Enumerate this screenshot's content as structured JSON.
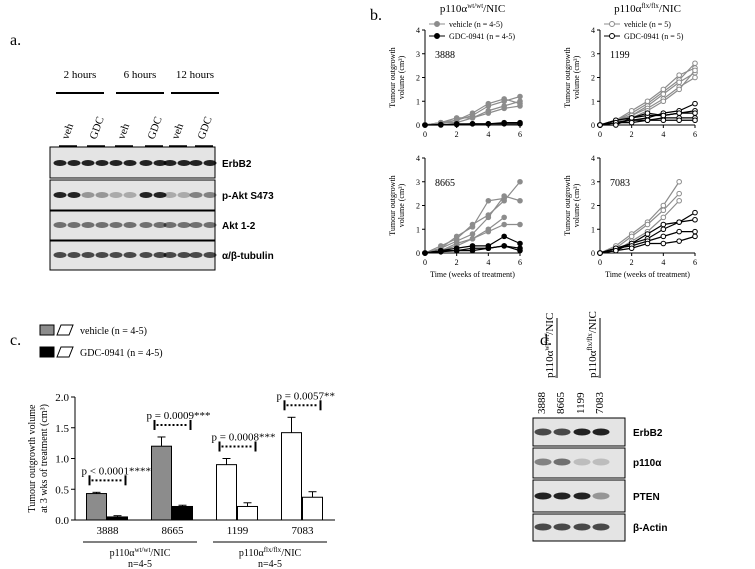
{
  "panels": {
    "a": "a.",
    "b": "b.",
    "c": "c.",
    "d": "d."
  },
  "blot_a": {
    "times": [
      "2 hours",
      "6 hours",
      "12 hours"
    ],
    "lanes": [
      "veh",
      "GDC",
      "veh",
      "GDC",
      "veh",
      "GDC"
    ],
    "rows": [
      "ErbB2",
      "p-Akt S473",
      "Akt 1-2",
      "α/β-tubulin"
    ]
  },
  "blot_d": {
    "groups": [
      {
        "name": "p110α",
        "sup": "wt/wt",
        "suffix": "/NIC"
      },
      {
        "name": "p110α",
        "sup": "flx/flx",
        "suffix": "/NIC"
      }
    ],
    "samples": [
      "3888",
      "8665",
      "1199",
      "7083"
    ],
    "rows": [
      "ErbB2",
      "p110α",
      "PTEN",
      "β-Actin"
    ]
  },
  "chart_data": [
    {
      "type": "line",
      "title": "p110α",
      "title_sup": "wt/wt",
      "title_suffix": "/NIC",
      "annotation": "3888",
      "ylabel": [
        "Tumour outgrowth",
        "volume (cm³)"
      ],
      "x": [
        0,
        1,
        2,
        3,
        4,
        5,
        6
      ],
      "xlim": [
        0,
        6
      ],
      "xticks": [
        0,
        2,
        4,
        6
      ],
      "ylim": [
        0,
        4
      ],
      "yticks": [
        0,
        1,
        2,
        3,
        4
      ],
      "series": [
        {
          "name": "vehicle (n = 4-5)",
          "color": "#8c8c8c",
          "marker": "filled",
          "lines": [
            [
              0,
              0.1,
              0.2,
              0.4,
              0.8,
              1.0,
              1.2
            ],
            [
              0,
              0.05,
              0.2,
              0.5,
              0.9,
              1.1,
              0.9
            ],
            [
              0,
              0.1,
              0.3,
              0.3,
              0.6,
              0.8,
              1.0
            ],
            [
              0,
              0.1,
              0.1,
              0.3,
              0.5,
              0.7,
              0.8
            ]
          ]
        },
        {
          "name": "GDC-0941 (n = 4-5)",
          "color": "#000000",
          "marker": "filled",
          "lines": [
            [
              0,
              0,
              0.05,
              0.05,
              0.05,
              0.1,
              0.1
            ],
            [
              0,
              0.02,
              0.02,
              0.05,
              0.05,
              0.05,
              0.05
            ]
          ]
        }
      ]
    },
    {
      "type": "line",
      "title": "p110α",
      "title_sup": "flx/flx",
      "title_suffix": "/NIC",
      "annotation": "1199",
      "ylabel": [
        "Tumour outgrowth",
        "volume (cm³)"
      ],
      "x": [
        0,
        1,
        2,
        3,
        4,
        5,
        6
      ],
      "xlim": [
        0,
        6
      ],
      "xticks": [
        0,
        2,
        4,
        6
      ],
      "ylim": [
        0,
        4
      ],
      "yticks": [
        0,
        1,
        2,
        3,
        4
      ],
      "series": [
        {
          "name": "vehicle (n = 5)",
          "color": "#8c8c8c",
          "marker": "open",
          "lines": [
            [
              0,
              0.2,
              0.5,
              0.9,
              1.4,
              1.9,
              2.6
            ],
            [
              0,
              0.2,
              0.6,
              1.0,
              1.5,
              2.1,
              2.4
            ],
            [
              0,
              0.1,
              0.4,
              0.8,
              1.3,
              1.8,
              2.2
            ],
            [
              0,
              0.2,
              0.4,
              0.7,
              1.1,
              1.6,
              2.0
            ],
            [
              0,
              0.1,
              0.3,
              0.6,
              1.0,
              1.5,
              2.3
            ]
          ]
        },
        {
          "name": "GDC-0941 (n = 5)",
          "color": "#000000",
          "marker": "open",
          "lines": [
            [
              0,
              0.1,
              0.2,
              0.3,
              0.5,
              0.6,
              0.9
            ],
            [
              0,
              0.2,
              0.3,
              0.4,
              0.4,
              0.5,
              0.6
            ],
            [
              0,
              0.1,
              0.2,
              0.2,
              0.3,
              0.3,
              0.3
            ],
            [
              0,
              0.1,
              0.1,
              0.2,
              0.2,
              0.2,
              0.2
            ],
            [
              0,
              0,
              0.3,
              0.5,
              0.4,
              0.5,
              0.5
            ]
          ]
        }
      ]
    },
    {
      "type": "line",
      "annotation": "8665",
      "ylabel": [
        "Tumour outgrowth",
        "volume (cm³)"
      ],
      "xlabel": "Time (weeks of treatment)",
      "x": [
        0,
        1,
        2,
        3,
        4,
        5,
        6
      ],
      "xlim": [
        0,
        6
      ],
      "xticks": [
        0,
        2,
        4,
        6
      ],
      "ylim": [
        0,
        4
      ],
      "yticks": [
        0,
        1,
        2,
        3,
        4
      ],
      "series": [
        {
          "color": "#8c8c8c",
          "marker": "filled",
          "lines": [
            [
              0,
              0.3,
              0.6,
              1.2,
              1.6,
              2.2,
              3.0
            ],
            [
              0,
              0.2,
              0.7,
              1.1,
              2.2,
              2.3,
              null
            ],
            [
              0,
              0.2,
              0.5,
              0.8,
              1.5,
              2.4,
              2.2
            ],
            [
              0,
              0.1,
              0.4,
              0.6,
              1.0,
              1.5,
              null
            ],
            [
              0,
              0.1,
              0.3,
              0.6,
              0.9,
              1.2,
              1.2
            ]
          ]
        },
        {
          "color": "#000000",
          "marker": "filled",
          "lines": [
            [
              0,
              0.1,
              0.2,
              0.3,
              0.3,
              0.7,
              0.4
            ],
            [
              0,
              0.1,
              0.1,
              0.2,
              0.2,
              0.3,
              0.2
            ],
            [
              0,
              0.05,
              0.1,
              0.1,
              0.2,
              0.3,
              0.1
            ]
          ]
        }
      ]
    },
    {
      "type": "line",
      "annotation": "7083",
      "ylabel": [
        "Tumour outgrowth",
        "volume (cm³)"
      ],
      "xlabel": "Time (weeks of treatment)",
      "x": [
        0,
        1,
        2,
        3,
        4,
        5,
        6
      ],
      "xlim": [
        0,
        6
      ],
      "xticks": [
        0,
        2,
        4,
        6
      ],
      "ylim": [
        0,
        4
      ],
      "yticks": [
        0,
        1,
        2,
        3,
        4
      ],
      "series": [
        {
          "color": "#8c8c8c",
          "marker": "open",
          "lines": [
            [
              0,
              0.3,
              0.8,
              1.3,
              2.0,
              3.0,
              null
            ],
            [
              0,
              0.2,
              0.7,
              1.2,
              1.8,
              2.5,
              null
            ],
            [
              0,
              0.1,
              0.5,
              0.9,
              1.5,
              2.2,
              null
            ]
          ]
        },
        {
          "color": "#000000",
          "marker": "open",
          "lines": [
            [
              0,
              0.2,
              0.4,
              0.8,
              1.2,
              1.3,
              1.7
            ],
            [
              0,
              0.1,
              0.4,
              0.6,
              1.0,
              1.3,
              1.4
            ],
            [
              0,
              0.2,
              0.3,
              0.5,
              0.7,
              0.9,
              0.9
            ],
            [
              0,
              0.1,
              0.2,
              0.4,
              0.4,
              0.5,
              0.7
            ]
          ]
        }
      ]
    },
    {
      "type": "bar",
      "categories": [
        "3888",
        "8665",
        "1199",
        "7083"
      ],
      "ylabel": [
        "Tumour outgrowth volume",
        "at 3 wks of treatment (cm³)"
      ],
      "ylim": [
        0,
        2
      ],
      "yticks": [
        {
          "value": 0,
          "label": "0.0"
        },
        {
          "value": 0.5,
          "label": "0.5"
        },
        {
          "value": 1,
          "label": "1.0"
        },
        {
          "value": 1.5,
          "label": "1.5"
        },
        {
          "value": 2,
          "label": "2.0"
        }
      ],
      "series": [
        {
          "name": "vehicle (n = 4-5)",
          "colors": [
            "#8c8c8c",
            "#8c8c8c",
            "#ffffff",
            "#ffffff"
          ],
          "values": [
            0.43,
            1.2,
            0.9,
            1.42
          ],
          "errors": [
            0.02,
            0.15,
            0.1,
            0.25
          ]
        },
        {
          "name": "GDC-0941 (n = 4-5)",
          "colors": [
            "#000000",
            "#000000",
            "#ffffff",
            "#ffffff"
          ],
          "values": [
            0.05,
            0.22,
            0.22,
            0.37
          ],
          "errors": [
            0.02,
            0.02,
            0.06,
            0.09
          ]
        }
      ],
      "annotations": [
        "p < 0.0001****",
        "p = 0.0009***",
        "p = 0.0008***",
        "p = 0.0057**"
      ],
      "groups": [
        {
          "name": "p110α",
          "sup": "wt/wt",
          "suffix": "/NIC",
          "n": "n=4-5"
        },
        {
          "name": "p110α",
          "sup": "flx/flx",
          "suffix": "/NIC",
          "n": "n=4-5"
        }
      ]
    }
  ]
}
